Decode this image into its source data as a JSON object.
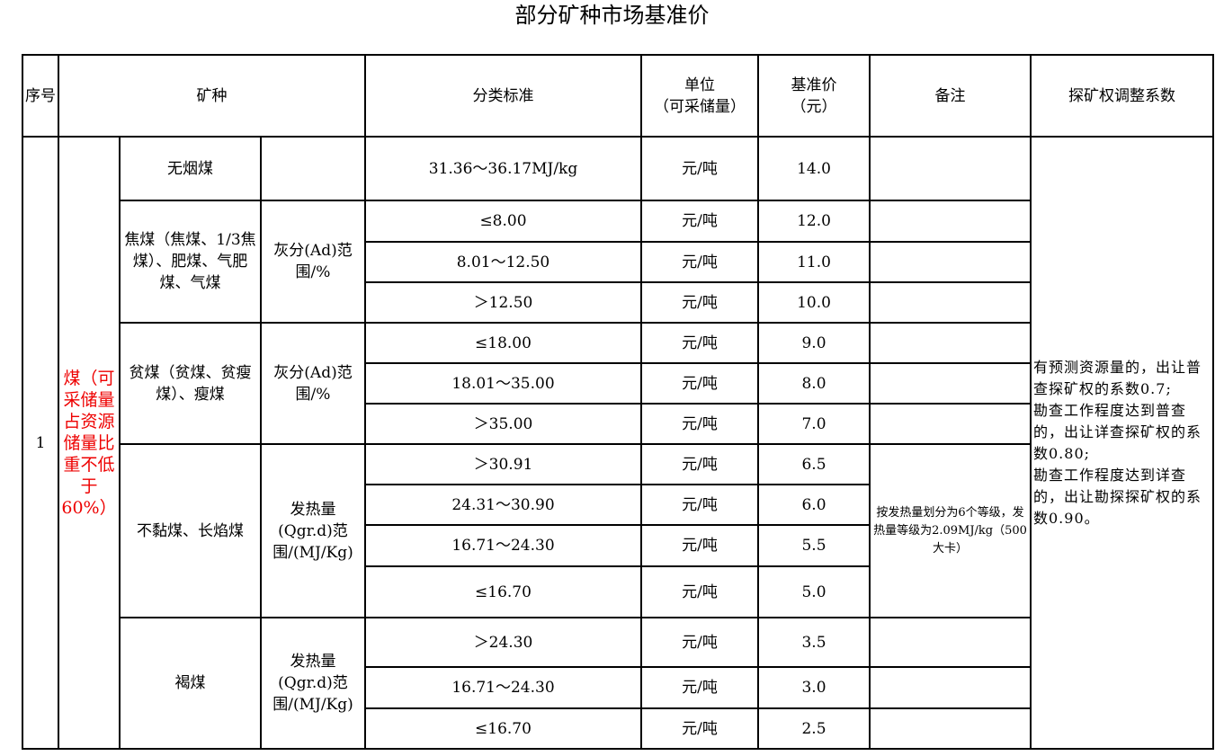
{
  "title": "部分矿种市场基准价",
  "headers": {
    "seq": "序号",
    "mineral": "矿种",
    "standard": "分类标准",
    "unit": "单位\n（可采储量）",
    "price": "基准价\n（元）",
    "remark": "备注",
    "coef": "探矿权调整系数"
  },
  "seq": "1",
  "category": "煤（可采储量占资源储量比重不低于60%）",
  "unit": "元/吨",
  "groups": [
    {
      "name": "无烟煤",
      "criterion": "",
      "rows": [
        {
          "std": "31.36～36.17MJ/kg",
          "price": "14.0"
        }
      ]
    },
    {
      "name": "焦煤（焦煤、1/3焦煤）、肥煤、气肥煤、气煤",
      "criterion": "灰分(Ad)范围/%",
      "rows": [
        {
          "std": "≤8.00",
          "price": "12.0"
        },
        {
          "std": "8.01～12.50",
          "price": "11.0"
        },
        {
          "std": "＞12.50",
          "price": "10.0"
        }
      ]
    },
    {
      "name": "贫煤（贫煤、贫瘦煤）、瘦煤",
      "criterion": "灰分(Ad)范围/%",
      "rows": [
        {
          "std": "≤18.00",
          "price": "9.0"
        },
        {
          "std": "18.01～35.00",
          "price": "8.0"
        },
        {
          "std": "＞35.00",
          "price": "7.0"
        }
      ]
    },
    {
      "name": "不黏煤、长焰煤",
      "criterion": "发热量(Qgr.d)范围/(MJ/Kg)",
      "rows": [
        {
          "std": "＞30.91",
          "price": "6.5"
        },
        {
          "std": "24.31～30.90",
          "price": "6.0"
        },
        {
          "std": "16.71～24.30",
          "price": "5.5"
        },
        {
          "std": "≤16.70",
          "price": "5.0"
        }
      ]
    },
    {
      "name": "褐煤",
      "criterion": "发热量(Qgr.d)范围/(MJ/Kg)",
      "rows": [
        {
          "std": "＞24.30",
          "price": "3.5"
        },
        {
          "std": "16.71～24.30",
          "price": "3.0"
        },
        {
          "std": "≤16.70",
          "price": "2.5"
        }
      ]
    }
  ],
  "remark_note": "按发热量划分为6个等级，发热量等级为2.09MJ/kg（500大卡）",
  "coef_text": "有预测资源量的，出让普查探矿权的系数0.7;\n勘查工作程度达到普查的，出让详查探矿权的系数0.80;\n勘查工作程度达到详查的，出让勘探探矿权的系数0.90。"
}
